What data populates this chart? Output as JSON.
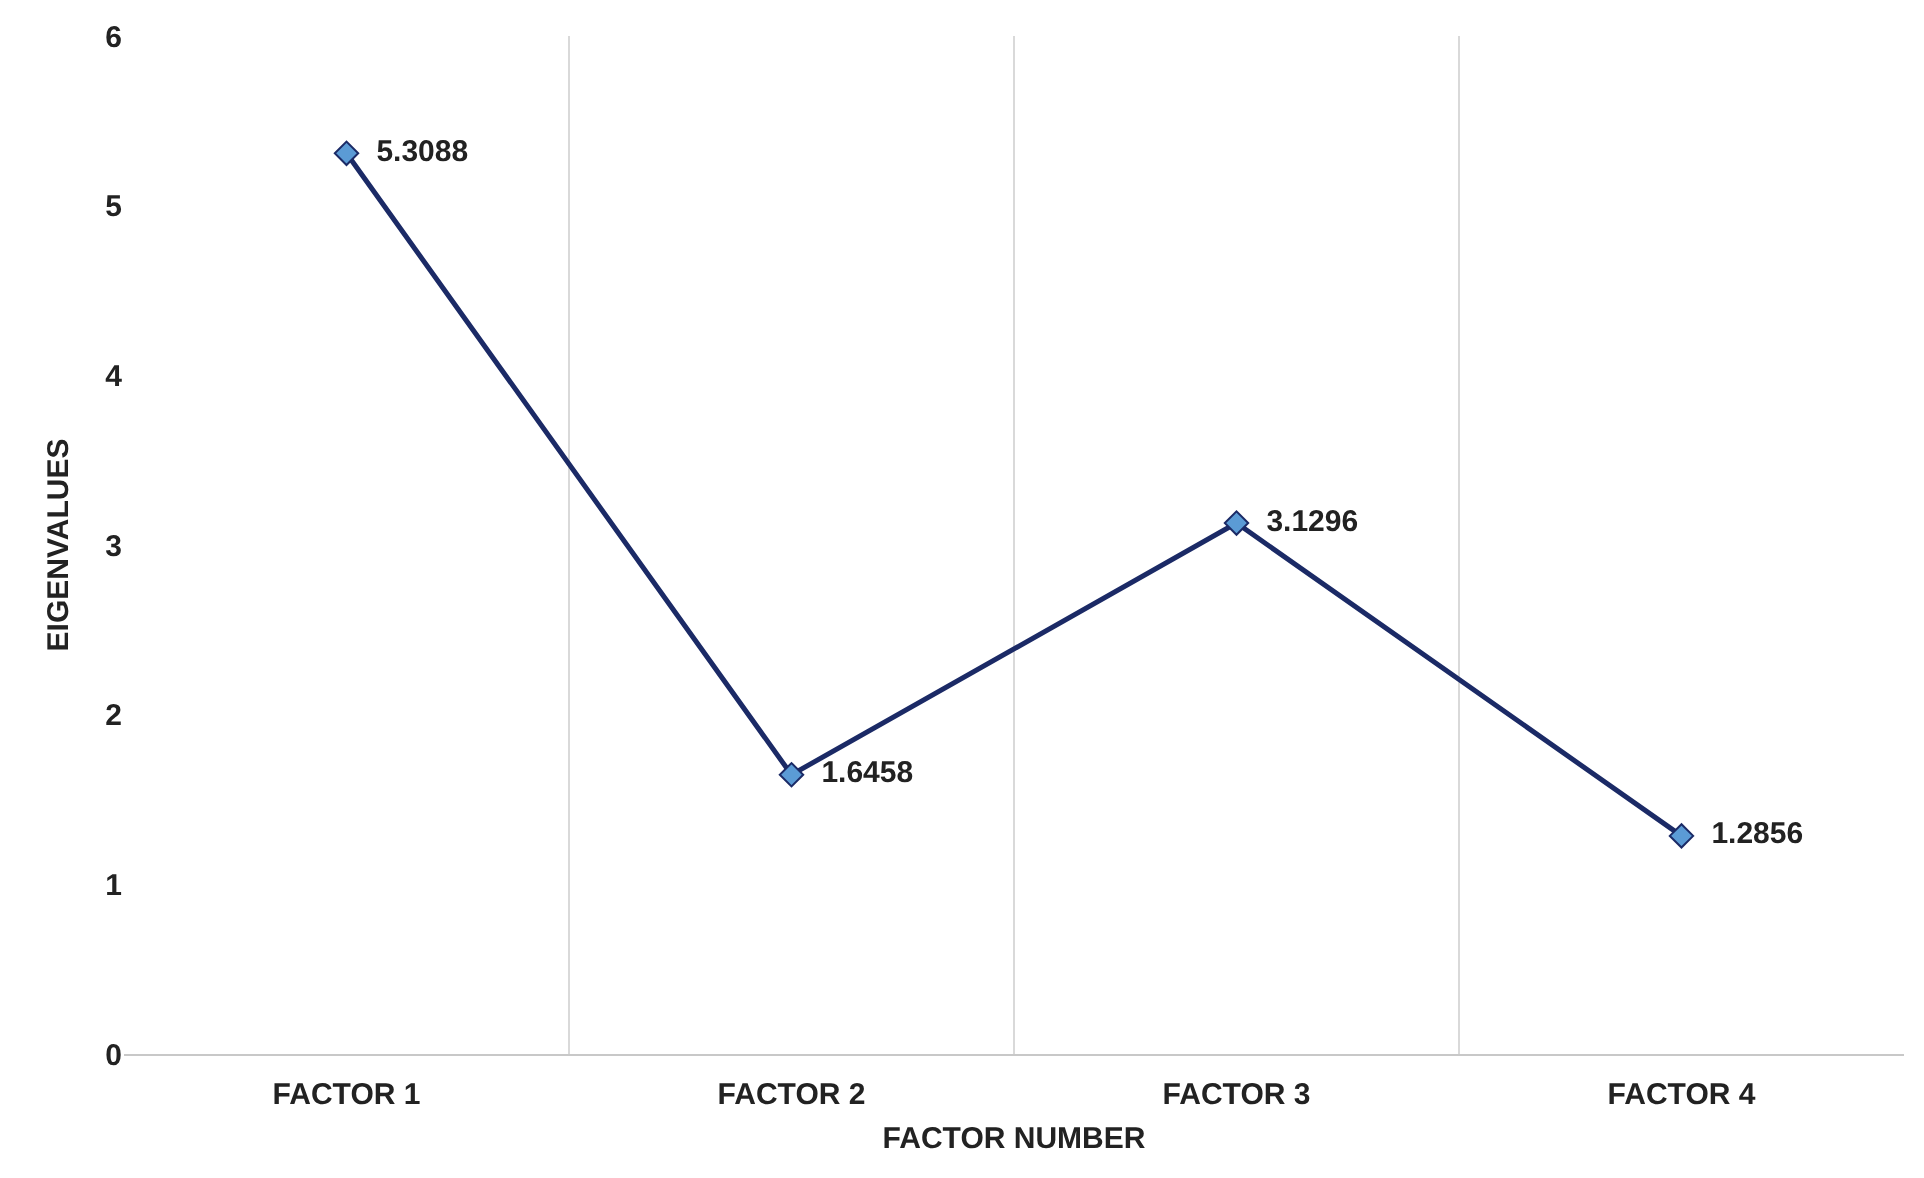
{
  "chart_data": {
    "type": "line",
    "xlabel": "FACTOR NUMBER",
    "ylabel": "EIGENVALUES",
    "categories": [
      "FACTOR 1",
      "FACTOR 2",
      "FACTOR 3",
      "FACTOR 4"
    ],
    "series": [
      {
        "color": "#1b2a66",
        "values": [
          5.3088,
          1.6458,
          3.1296,
          1.2856
        ]
      }
    ],
    "ylim": [
      0,
      6
    ],
    "yticks": [
      0,
      1,
      2,
      3,
      4,
      5,
      6
    ],
    "grid": "x",
    "marker": "diamond",
    "line_style": "solid",
    "data_labels": true
  }
}
